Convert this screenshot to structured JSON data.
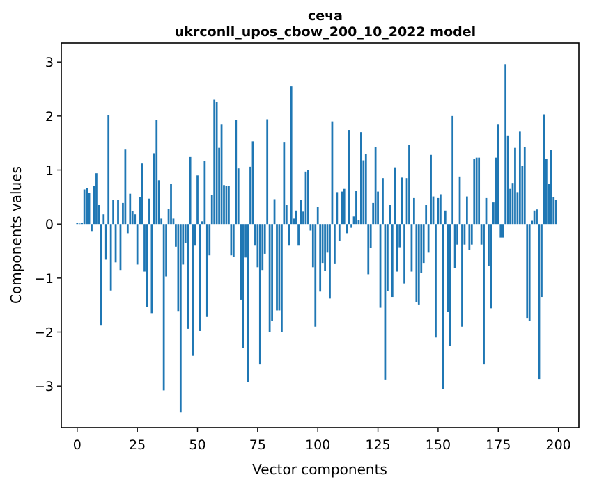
{
  "chart_data": {
    "type": "bar",
    "title_lines": [
      "сеча",
      "ukrconll_upos_cbow_200_10_2022 model"
    ],
    "xlabel": "Vector components",
    "ylabel": "Components values",
    "bar_color": "#1f77b4",
    "background_color": "#ffffff",
    "n_components": 200,
    "x_ticks": [
      0,
      25,
      50,
      75,
      100,
      125,
      150,
      175,
      200
    ],
    "y_ticks": [
      3,
      2,
      1,
      0,
      -1,
      -2,
      -3
    ],
    "xlim": [
      -6.6,
      208.5
    ],
    "ylim": [
      -3.77,
      3.35
    ],
    "grid": false,
    "legend": null,
    "values": [
      0.02,
      0.01,
      0.02,
      0.64,
      0.67,
      0.57,
      -0.13,
      0.71,
      0.94,
      0.35,
      -1.88,
      0.18,
      -0.66,
      2.02,
      -1.23,
      0.45,
      -0.71,
      0.45,
      -0.85,
      0.39,
      1.39,
      -0.17,
      0.56,
      0.24,
      0.18,
      -0.75,
      0.5,
      1.12,
      -0.88,
      -1.54,
      0.47,
      -1.65,
      1.31,
      1.93,
      0.81,
      0.1,
      -3.08,
      -0.97,
      0.28,
      0.74,
      0.1,
      -0.42,
      -1.61,
      -3.49,
      -0.75,
      -0.35,
      -1.94,
      1.24,
      -2.44,
      -0.4,
      0.9,
      -1.98,
      0.05,
      1.17,
      -1.72,
      -0.58,
      0.54,
      2.3,
      2.26,
      1.41,
      1.84,
      0.72,
      0.71,
      0.7,
      -0.58,
      -0.61,
      1.93,
      1.03,
      -1.4,
      -2.3,
      -0.62,
      -2.93,
      1.06,
      1.53,
      -0.4,
      -0.8,
      -2.6,
      -0.85,
      -0.55,
      1.94,
      -2.0,
      -1.8,
      0.46,
      -1.6,
      -1.6,
      -2.0,
      1.52,
      0.35,
      -0.4,
      2.55,
      0.1,
      0.25,
      -0.4,
      0.45,
      0.23,
      0.97,
      1.0,
      -0.12,
      -0.8,
      -1.9,
      0.32,
      -1.25,
      -0.72,
      -0.87,
      -0.53,
      -1.38,
      1.9,
      -0.73,
      0.59,
      -0.31,
      0.6,
      0.65,
      -0.17,
      1.74,
      -0.07,
      0.14,
      0.61,
      0.07,
      1.7,
      1.18,
      1.3,
      -0.93,
      -0.44,
      0.39,
      1.42,
      0.6,
      -1.55,
      0.85,
      -2.88,
      -1.24,
      0.35,
      -1.35,
      1.05,
      -0.88,
      -0.43,
      0.86,
      -1.1,
      0.85,
      1.47,
      -0.88,
      0.48,
      -1.44,
      -1.49,
      -0.91,
      -0.72,
      0.35,
      -0.53,
      1.28,
      0.51,
      -2.1,
      0.48,
      0.55,
      -3.05,
      0.25,
      -1.63,
      -2.26,
      2.0,
      -0.82,
      -0.38,
      0.88,
      -1.9,
      -0.38,
      0.51,
      -0.48,
      -0.38,
      1.21,
      1.23,
      1.23,
      -0.38,
      -2.6,
      0.48,
      -0.77,
      -1.56,
      0.4,
      1.23,
      1.84,
      -0.25,
      -0.25,
      2.96,
      1.64,
      0.65,
      0.76,
      1.41,
      0.59,
      1.71,
      1.08,
      1.43,
      -1.75,
      -1.8,
      0.06,
      0.25,
      0.27,
      -2.87,
      -1.35,
      2.03,
      1.21,
      0.74,
      1.38,
      0.5,
      0.45
    ]
  }
}
